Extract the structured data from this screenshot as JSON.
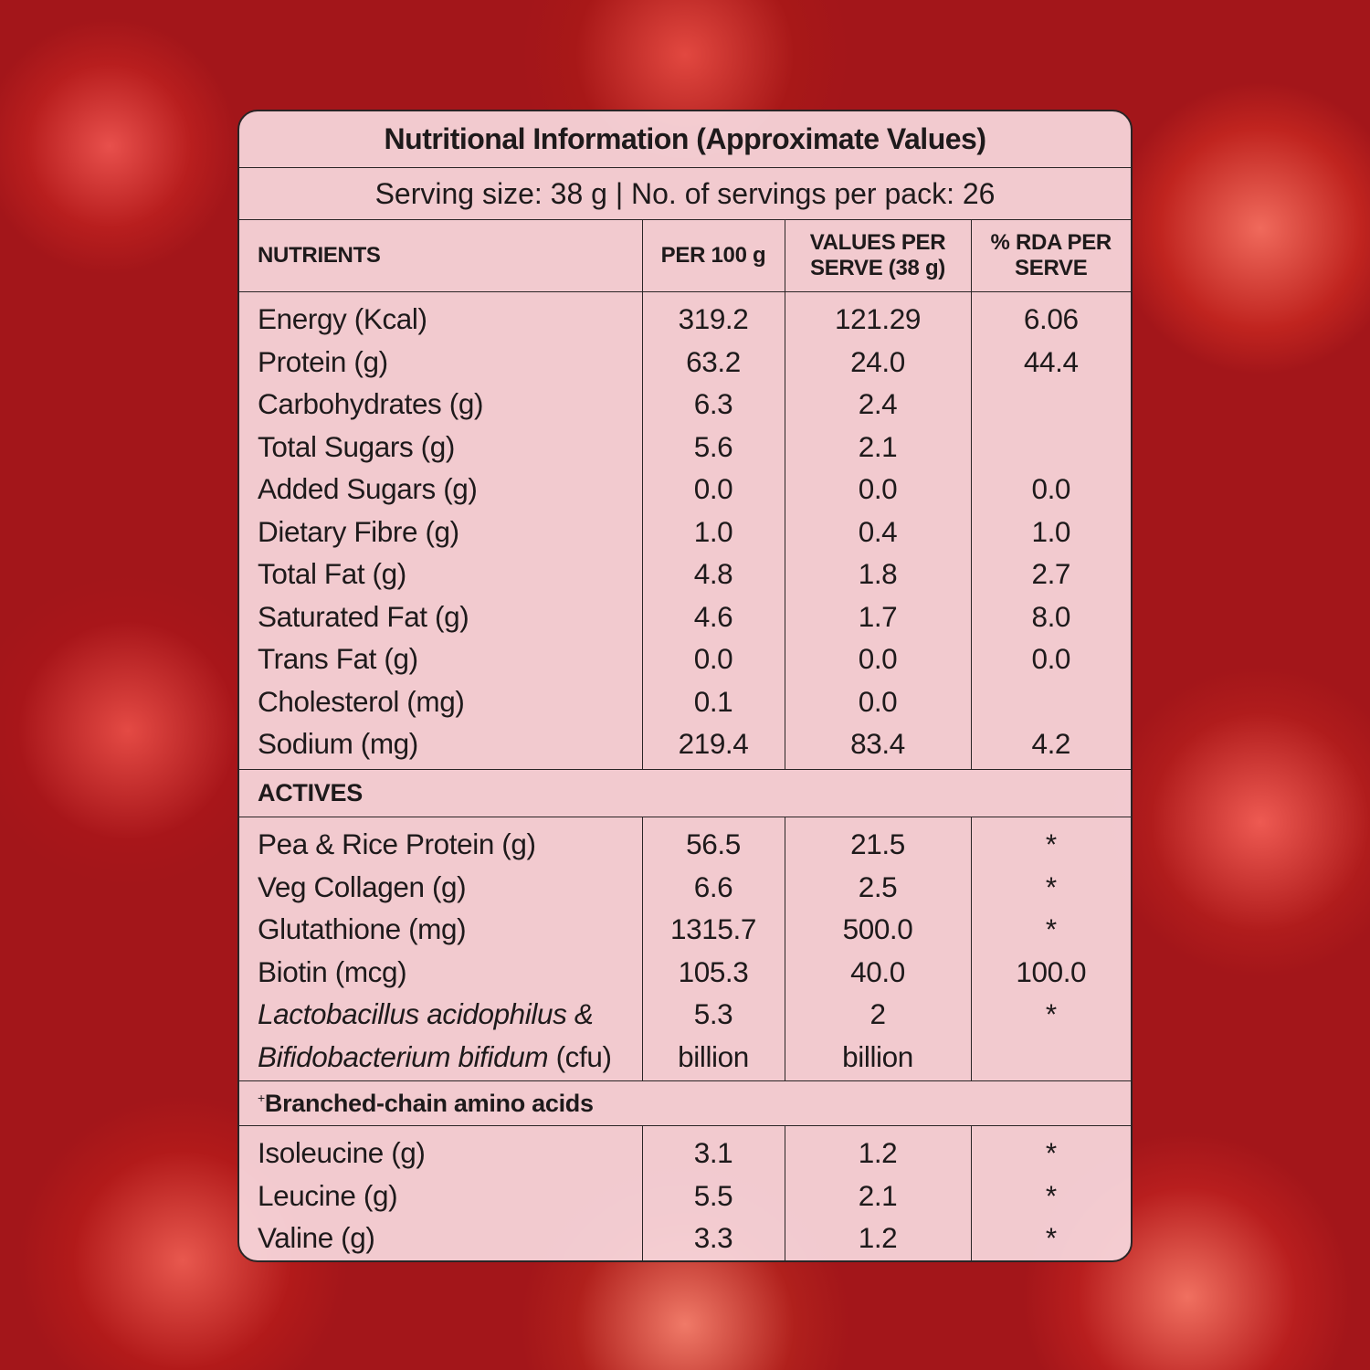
{
  "header": {
    "title": "Nutritional Information (Approximate Values)",
    "serving": "Serving size: 38 g | No. of servings per pack: 26"
  },
  "table": {
    "columns": [
      "NUTRIENTS",
      "PER 100 g",
      "VALUES PER SERVE (38 g)",
      "% RDA PER SERVE"
    ],
    "sections": [
      {
        "rows": [
          {
            "name": "Energy (Kcal)",
            "per100": "319.2",
            "serve": "121.29",
            "rda": "6.06"
          },
          {
            "name": "Protein (g)",
            "per100": "63.2",
            "serve": "24.0",
            "rda": "44.4"
          },
          {
            "name": "Carbohydrates (g)",
            "per100": "6.3",
            "serve": "2.4"
          },
          {
            "name": "Total Sugars (g)",
            "per100": "5.6",
            "serve": "2.1"
          },
          {
            "name": "Added Sugars (g)",
            "per100": "0.0",
            "serve": "0.0",
            "rda": "0.0"
          },
          {
            "name": "Dietary Fibre (g)",
            "per100": "1.0",
            "serve": "0.4",
            "rda": "1.0"
          },
          {
            "name": "Total Fat (g)",
            "per100": "4.8",
            "serve": "1.8",
            "rda": "2.7"
          },
          {
            "name": "Saturated Fat (g)",
            "per100": "4.6",
            "serve": "1.7",
            "rda": "8.0"
          },
          {
            "name": "Trans Fat (g)",
            "per100": "0.0",
            "serve": "0.0",
            "rda": "0.0"
          },
          {
            "name": "Cholesterol (mg)",
            "per100": "0.1",
            "serve": "0.0"
          },
          {
            "name": "Sodium (mg)",
            "per100": "219.4",
            "serve": "83.4",
            "rda": "4.2"
          }
        ]
      },
      {
        "title": "ACTIVES",
        "rows": [
          {
            "name": "Pea & Rice Protein (g)",
            "per100": "56.5",
            "serve": "21.5",
            "rda": "*"
          },
          {
            "name": "Veg Collagen (g)",
            "per100": "6.6",
            "serve": "2.5",
            "rda": "*"
          },
          {
            "name": "Glutathione (mg)",
            "per100": "1315.7",
            "serve": "500.0",
            "rda": "*"
          },
          {
            "name": "Biotin (mcg)",
            "per100": "105.3",
            "serve": "40.0",
            "rda": "100.0"
          },
          {
            "name_lines": [
              "Lactobacillus acidophilus &",
              "Bifidobacterium bifidum"
            ],
            "unit": "(cfu)",
            "per100": "5.3",
            "per100_unit": "billion",
            "serve": "2",
            "serve_unit": "billion",
            "rda": "*"
          }
        ]
      },
      {
        "marker": "+",
        "title": "Branched-chain amino acids",
        "rows": [
          {
            "name": "Isoleucine (g)",
            "per100": "3.1",
            "serve": "1.2",
            "rda": "*"
          },
          {
            "name": "Leucine (g)",
            "per100": "5.5",
            "serve": "2.1",
            "rda": "*"
          },
          {
            "name": "Valine (g)",
            "per100": "3.3",
            "serve": "1.2",
            "rda": "*"
          }
        ]
      }
    ]
  }
}
